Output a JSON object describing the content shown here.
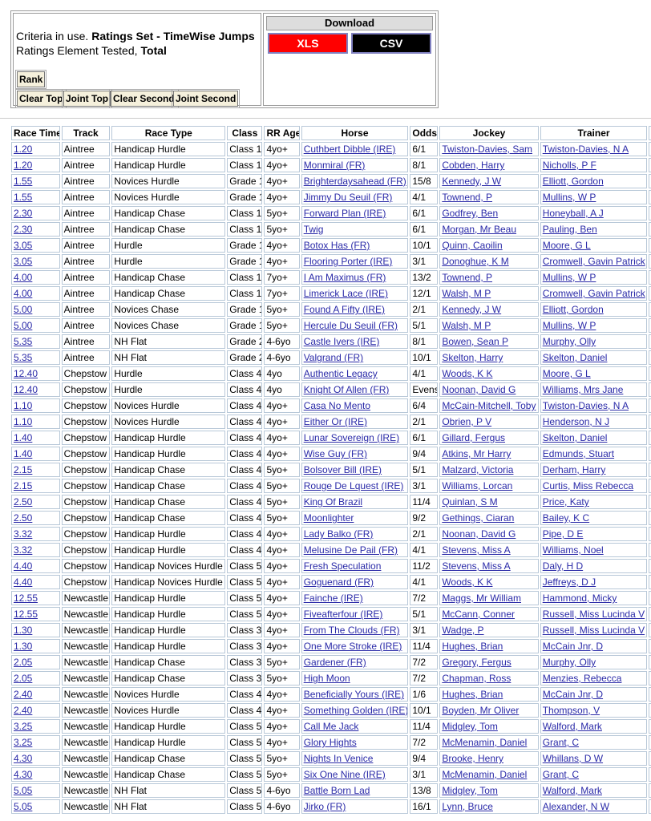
{
  "criteria": {
    "line1_label": "Criteria in use.",
    "line1_value": "Ratings Set - TimeWise Jumps",
    "line2_label": "Ratings Element Tested,",
    "line2_value": "Total"
  },
  "buttons": {
    "rank": "Rank",
    "clear_top": "Clear Top",
    "joint_top": "Joint Top",
    "clear_second": "Clear Second",
    "joint_second": "Joint Second"
  },
  "download": {
    "title": "Download",
    "xls": "XLS",
    "csv": "CSV"
  },
  "table": {
    "headers": [
      "Race Time",
      "Track",
      "Race Type",
      "Class",
      "RR Age",
      "Horse",
      "Odds",
      "Jockey",
      "Trainer"
    ],
    "rows": [
      [
        "1.20",
        "Aintree",
        "Handicap Hurdle",
        "Class 1",
        "4yo+",
        "Cuthbert Dibble (IRE)",
        "6/1",
        "Twiston-Davies, Sam",
        "Twiston-Davies, N A"
      ],
      [
        "1.20",
        "Aintree",
        "Handicap Hurdle",
        "Class 1",
        "4yo+",
        "Monmiral (FR)",
        "8/1",
        "Cobden, Harry",
        "Nicholls, P F"
      ],
      [
        "1.55",
        "Aintree",
        "Novices Hurdle",
        "Grade 1",
        "4yo+",
        "Brighterdaysahead (FR)",
        "15/8",
        "Kennedy, J W",
        "Elliott, Gordon"
      ],
      [
        "1.55",
        "Aintree",
        "Novices Hurdle",
        "Grade 1",
        "4yo+",
        "Jimmy Du Seuil (FR)",
        "4/1",
        "Townend, P",
        "Mullins, W P"
      ],
      [
        "2.30",
        "Aintree",
        "Handicap Chase",
        "Class 1",
        "5yo+",
        "Forward Plan (IRE)",
        "6/1",
        "Godfrey, Ben",
        "Honeyball, A J"
      ],
      [
        "2.30",
        "Aintree",
        "Handicap Chase",
        "Class 1",
        "5yo+",
        "Twig",
        "6/1",
        "Morgan, Mr Beau",
        "Pauling, Ben"
      ],
      [
        "3.05",
        "Aintree",
        "Hurdle",
        "Grade 1",
        "4yo+",
        "Botox Has (FR)",
        "10/1",
        "Quinn, Caoilin",
        "Moore, G L"
      ],
      [
        "3.05",
        "Aintree",
        "Hurdle",
        "Grade 1",
        "4yo+",
        "Flooring Porter (IRE)",
        "3/1",
        "Donoghue, K M",
        "Cromwell, Gavin Patrick"
      ],
      [
        "4.00",
        "Aintree",
        "Handicap Chase",
        "Class 1",
        "7yo+",
        "I Am Maximus (FR)",
        "13/2",
        "Townend, P",
        "Mullins, W P"
      ],
      [
        "4.00",
        "Aintree",
        "Handicap Chase",
        "Class 1",
        "7yo+",
        "Limerick Lace (IRE)",
        "12/1",
        "Walsh, M P",
        "Cromwell, Gavin Patrick"
      ],
      [
        "5.00",
        "Aintree",
        "Novices Chase",
        "Grade 1",
        "5yo+",
        "Found A Fifty (IRE)",
        "2/1",
        "Kennedy, J W",
        "Elliott, Gordon"
      ],
      [
        "5.00",
        "Aintree",
        "Novices Chase",
        "Grade 1",
        "5yo+",
        "Hercule Du Seuil (FR)",
        "5/1",
        "Walsh, M P",
        "Mullins, W P"
      ],
      [
        "5.35",
        "Aintree",
        "NH Flat",
        "Grade 2",
        "4-6yo",
        "Castle Ivers (IRE)",
        "8/1",
        "Bowen, Sean P",
        "Murphy, Olly"
      ],
      [
        "5.35",
        "Aintree",
        "NH Flat",
        "Grade 2",
        "4-6yo",
        "Valgrand (FR)",
        "10/1",
        "Skelton, Harry",
        "Skelton, Daniel"
      ],
      [
        "12.40",
        "Chepstow",
        "Hurdle",
        "Class 4",
        "4yo",
        "Authentic Legacy",
        "4/1",
        "Woods, K K",
        "Moore, G L"
      ],
      [
        "12.40",
        "Chepstow",
        "Hurdle",
        "Class 4",
        "4yo",
        "Knight Of Allen (FR)",
        "Evens",
        "Noonan, David G",
        "Williams, Mrs Jane"
      ],
      [
        "1.10",
        "Chepstow",
        "Novices Hurdle",
        "Class 4",
        "4yo+",
        "Casa No Mento",
        "6/4",
        "McCain-Mitchell, Toby",
        "Twiston-Davies, N A"
      ],
      [
        "1.10",
        "Chepstow",
        "Novices Hurdle",
        "Class 4",
        "4yo+",
        "Either Or (IRE)",
        "2/1",
        "Obrien, P V",
        "Henderson, N J"
      ],
      [
        "1.40",
        "Chepstow",
        "Handicap Hurdle",
        "Class 4",
        "4yo+",
        "Lunar Sovereign (IRE)",
        "6/1",
        "Gillard, Fergus",
        "Skelton, Daniel"
      ],
      [
        "1.40",
        "Chepstow",
        "Handicap Hurdle",
        "Class 4",
        "4yo+",
        "Wise Guy (FR)",
        "9/4",
        "Atkins, Mr Harry",
        "Edmunds, Stuart"
      ],
      [
        "2.15",
        "Chepstow",
        "Handicap Chase",
        "Class 4",
        "5yo+",
        "Bolsover Bill (IRE)",
        "5/1",
        "Malzard, Victoria",
        "Derham, Harry"
      ],
      [
        "2.15",
        "Chepstow",
        "Handicap Chase",
        "Class 4",
        "5yo+",
        "Rouge De Lquest (IRE)",
        "3/1",
        "Williams, Lorcan",
        "Curtis, Miss Rebecca"
      ],
      [
        "2.50",
        "Chepstow",
        "Handicap Chase",
        "Class 4",
        "5yo+",
        "King Of Brazil",
        "11/4",
        "Quinlan, S M",
        "Price, Katy"
      ],
      [
        "2.50",
        "Chepstow",
        "Handicap Chase",
        "Class 4",
        "5yo+",
        "Moonlighter",
        "9/2",
        "Gethings, Ciaran",
        "Bailey, K C"
      ],
      [
        "3.32",
        "Chepstow",
        "Handicap Hurdle",
        "Class 4",
        "4yo+",
        "Lady Balko (FR)",
        "2/1",
        "Noonan, David G",
        "Pipe, D E"
      ],
      [
        "3.32",
        "Chepstow",
        "Handicap Hurdle",
        "Class 4",
        "4yo+",
        "Melusine De Pail (FR)",
        "4/1",
        "Stevens, Miss A",
        "Williams, Noel"
      ],
      [
        "4.40",
        "Chepstow",
        "Handicap Novices Hurdle",
        "Class 5",
        "4yo+",
        "Fresh Speculation",
        "11/2",
        "Stevens, Miss A",
        "Daly, H D"
      ],
      [
        "4.40",
        "Chepstow",
        "Handicap Novices Hurdle",
        "Class 5",
        "4yo+",
        "Goguenard (FR)",
        "4/1",
        "Woods, K K",
        "Jeffreys, D J"
      ],
      [
        "12.55",
        "Newcastle",
        "Handicap Hurdle",
        "Class 5",
        "4yo+",
        "Fainche (IRE)",
        "7/2",
        "Maggs, Mr William",
        "Hammond, Micky"
      ],
      [
        "12.55",
        "Newcastle",
        "Handicap Hurdle",
        "Class 5",
        "4yo+",
        "Fiveafterfour (IRE)",
        "5/1",
        "McCann, Conner",
        "Russell, Miss Lucinda V"
      ],
      [
        "1.30",
        "Newcastle",
        "Handicap Hurdle",
        "Class 3",
        "4yo+",
        "From The Clouds (FR)",
        "3/1",
        "Wadge, P",
        "Russell, Miss Lucinda V"
      ],
      [
        "1.30",
        "Newcastle",
        "Handicap Hurdle",
        "Class 3",
        "4yo+",
        "One More Stroke (IRE)",
        "11/4",
        "Hughes, Brian",
        "McCain Jnr, D"
      ],
      [
        "2.05",
        "Newcastle",
        "Handicap Chase",
        "Class 3",
        "5yo+",
        "Gardener (FR)",
        "7/2",
        "Gregory, Fergus",
        "Murphy, Olly"
      ],
      [
        "2.05",
        "Newcastle",
        "Handicap Chase",
        "Class 3",
        "5yo+",
        "High Moon",
        "7/2",
        "Chapman, Ross",
        "Menzies, Rebecca"
      ],
      [
        "2.40",
        "Newcastle",
        "Novices Hurdle",
        "Class 4",
        "4yo+",
        "Beneficially Yours (IRE)",
        "1/6",
        "Hughes, Brian",
        "McCain Jnr, D"
      ],
      [
        "2.40",
        "Newcastle",
        "Novices Hurdle",
        "Class 4",
        "4yo+",
        "Something Golden (IRE)",
        "10/1",
        "Boyden, Mr Oliver",
        "Thompson, V"
      ],
      [
        "3.25",
        "Newcastle",
        "Handicap Hurdle",
        "Class 5",
        "4yo+",
        "Call Me Jack",
        "11/4",
        "Midgley, Tom",
        "Walford, Mark"
      ],
      [
        "3.25",
        "Newcastle",
        "Handicap Hurdle",
        "Class 5",
        "4yo+",
        "Glory Hights",
        "7/2",
        "McMenamin, Daniel",
        "Grant, C"
      ],
      [
        "4.30",
        "Newcastle",
        "Handicap Chase",
        "Class 5",
        "5yo+",
        "Nights In Venice",
        "9/4",
        "Brooke, Henry",
        "Whillans, D W"
      ],
      [
        "4.30",
        "Newcastle",
        "Handicap Chase",
        "Class 5",
        "5yo+",
        "Six One Nine (IRE)",
        "3/1",
        "McMenamin, Daniel",
        "Grant, C"
      ],
      [
        "5.05",
        "Newcastle",
        "NH Flat",
        "Class 5",
        "4-6yo",
        "Battle Born Lad",
        "13/8",
        "Midgley, Tom",
        "Walford, Mark"
      ],
      [
        "5.05",
        "Newcastle",
        "NH Flat",
        "Class 5",
        "4-6yo",
        "Jirko (FR)",
        "16/1",
        "Lynn, Bruce",
        "Alexander, N W"
      ]
    ]
  }
}
